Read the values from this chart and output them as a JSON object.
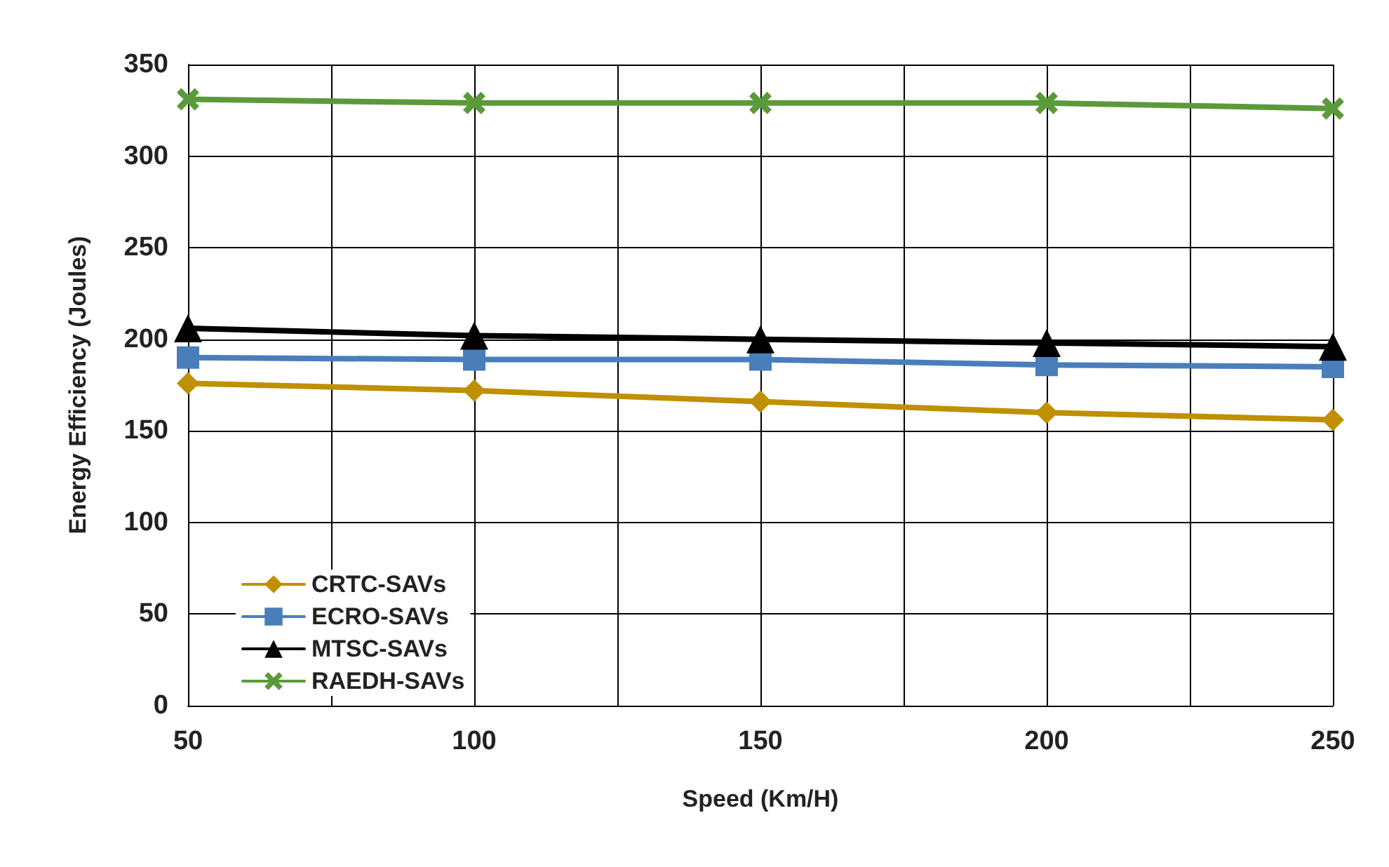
{
  "chart_data": {
    "type": "line",
    "xlabel": "Speed (Km/H)",
    "ylabel": "Energy Efficiency (Joules)",
    "x": [
      50,
      100,
      150,
      200,
      250
    ],
    "xlim": [
      50,
      250
    ],
    "xticks": [
      50,
      {
        "value": 75,
        "label": null
      },
      100,
      {
        "value": 125,
        "label": null
      },
      150,
      {
        "value": 175,
        "label": null
      },
      200,
      {
        "value": 225,
        "label": null
      },
      250
    ],
    "ylim": [
      0,
      350
    ],
    "yticks": [
      0,
      50,
      100,
      150,
      200,
      250,
      300,
      350
    ],
    "grid": true,
    "legend": "bottom left",
    "line_style": "solid",
    "series": [
      {
        "name": "CRTC-SAVs",
        "color": "#bf9000",
        "marker": "diamond",
        "values": [
          176,
          172,
          166,
          160,
          156
        ]
      },
      {
        "name": "ECRO-SAVs",
        "color": "#4a7ebb",
        "marker": "square",
        "values": [
          190,
          189,
          189,
          186,
          185
        ]
      },
      {
        "name": "MTSC-SAVs",
        "color": "#000000",
        "marker": "triangle",
        "values": [
          206,
          202,
          200,
          198,
          196
        ]
      },
      {
        "name": "RAEDH-SAVs",
        "color": "#5b9a3a",
        "marker": "cross",
        "values": [
          331,
          329,
          329,
          329,
          326
        ]
      }
    ]
  }
}
